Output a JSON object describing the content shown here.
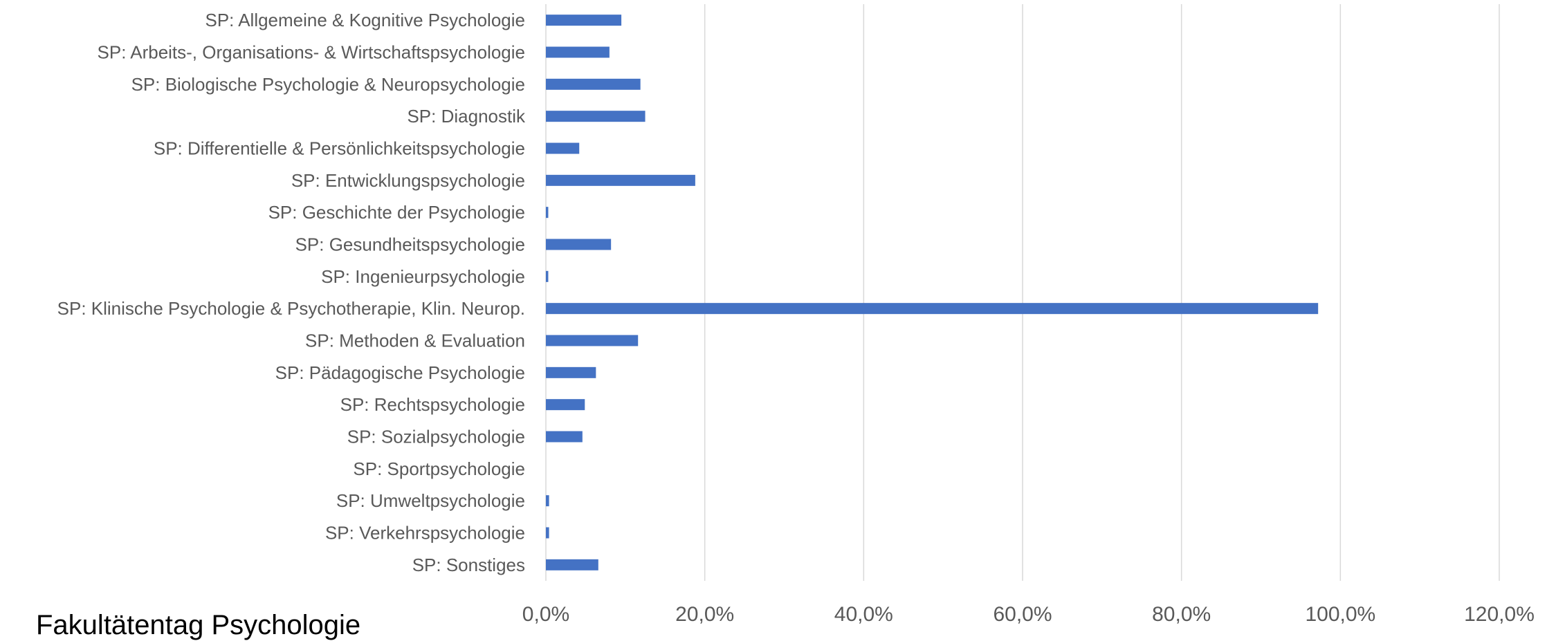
{
  "chart_data": {
    "type": "bar",
    "orientation": "horizontal",
    "categories": [
      "SP: Allgemeine & Kognitive Psychologie",
      "SP: Arbeits-, Organisations- & Wirtschaftspsychologie",
      "SP: Biologische Psychologie &  Neuropsychologie",
      "SP: Diagnostik",
      "SP: Differentielle &  Persönlichkeitspsychologie",
      "SP: Entwicklungspsychologie",
      "SP: Geschichte der Psychologie",
      "SP: Gesundheitspsychologie",
      "SP: Ingenieurpsychologie",
      "SP: Klinische Psychologie & Psychotherapie, Klin. Neurop.",
      "SP: Methoden & Evaluation",
      "SP: Pädagogische Psychologie",
      "SP: Rechtspsychologie",
      "SP: Sozialpsychologie",
      "SP: Sportpsychologie",
      "SP: Umweltpsychologie",
      "SP: Verkehrspsychologie",
      "SP: Sonstiges"
    ],
    "values": [
      9.5,
      8.0,
      11.9,
      12.5,
      4.2,
      18.8,
      0.3,
      8.2,
      0.3,
      97.2,
      11.6,
      6.3,
      4.9,
      4.6,
      0.0,
      0.4,
      0.4,
      6.6
    ],
    "xlim": [
      0,
      120
    ],
    "xticks": [
      "0,0%",
      "20,0%",
      "40,0%",
      "60,0%",
      "80,0%",
      "100,0%",
      "120,0%"
    ],
    "grid": true,
    "bar_color": "#4472c4",
    "title": "",
    "xlabel": "",
    "ylabel": ""
  },
  "footer_text": "Fakultätentag Psychologie"
}
